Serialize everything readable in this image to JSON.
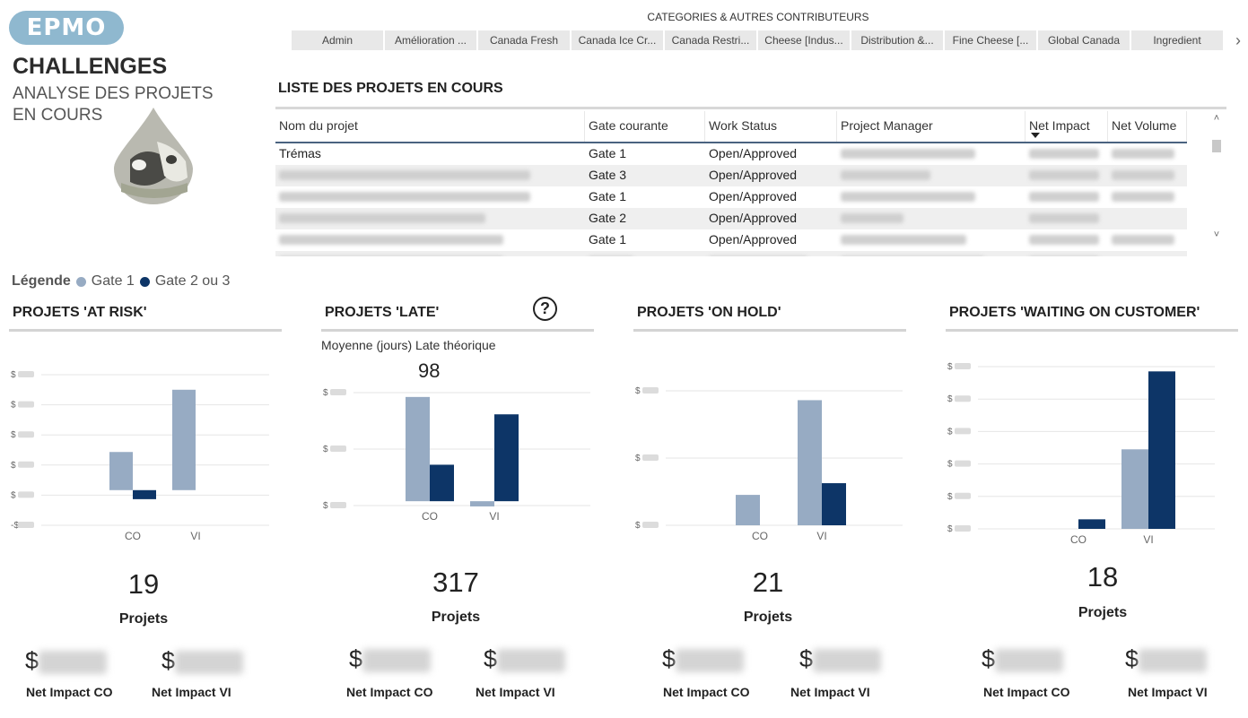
{
  "logo": {
    "text": "EPMO"
  },
  "header": {
    "title": "CHALLENGES",
    "subtitle": "ANALYSE DES PROJETS EN COURS"
  },
  "categories": {
    "title": "CATEGORIES & AUTRES CONTRIBUTEURS",
    "items": [
      "Admin",
      "Amélioration ...",
      "Canada Fresh",
      "Canada Ice Cr...",
      "Canada Restri...",
      "Cheese [Indus...",
      "Distribution &...",
      "Fine Cheese [...",
      "Global Canada",
      "Ingredient"
    ],
    "next_icon": "chevron-right-icon"
  },
  "table": {
    "title": "LISTE DES PROJETS EN COURS",
    "columns": [
      "Nom du projet",
      "Gate courante",
      "Work Status",
      "Project Manager",
      "Net Impact",
      "Net Volume"
    ],
    "rows": [
      {
        "name": "Trémas",
        "gate": "Gate 1",
        "status": "Open/Approved"
      },
      {
        "name": "",
        "gate": "Gate 3",
        "status": "Open/Approved"
      },
      {
        "name": "",
        "gate": "Gate 1",
        "status": "Open/Approved"
      },
      {
        "name": "",
        "gate": "Gate 2",
        "status": "Open/Approved"
      },
      {
        "name": "",
        "gate": "Gate 1",
        "status": "Open/Approved"
      }
    ]
  },
  "legend": {
    "label": "Légende",
    "gate1": "Gate 1",
    "gate23": "Gate 2 ou 3",
    "color_gate1": "#97abc3",
    "color_gate23": "#0d3567"
  },
  "panels": [
    {
      "title": "PROJETS 'AT RISK'",
      "count": "19",
      "count_label": "Projets",
      "kpi_co": "$",
      "kpi_co_label": "Net Impact CO",
      "kpi_vi": "$",
      "kpi_vi_label": "Net Impact VI"
    },
    {
      "title": "PROJETS 'LATE'",
      "help": "?",
      "subtitle": "Moyenne (jours) Late théorique",
      "late_value": "98",
      "count": "317",
      "count_label": "Projets",
      "kpi_co": "$",
      "kpi_co_label": "Net Impact CO",
      "kpi_vi": "$",
      "kpi_vi_label": "Net Impact VI"
    },
    {
      "title": "PROJETS 'ON HOLD'",
      "count": "21",
      "count_label": "Projets",
      "kpi_co": "$",
      "kpi_co_label": "Net Impact CO",
      "kpi_vi": "$",
      "kpi_vi_label": "Net Impact VI"
    },
    {
      "title": "PROJETS 'WAITING ON CUSTOMER'",
      "count": "18",
      "count_label": "Projets",
      "kpi_co": "$",
      "kpi_co_label": "Net Impact CO",
      "kpi_vi": "$",
      "kpi_vi_label": "Net Impact VI"
    }
  ],
  "chart_data": [
    {
      "type": "bar",
      "categories": [
        "CO",
        "VI"
      ],
      "series": [
        {
          "name": "Gate 1",
          "values": [
            0.38,
            1.0
          ]
        },
        {
          "name": "Gate 2 ou 3",
          "values": [
            -0.09,
            0
          ]
        }
      ],
      "ylim": [
        -0.35,
        1.15
      ],
      "yticks": [
        "$",
        "$",
        "$",
        "$",
        "$",
        "-$"
      ]
    },
    {
      "type": "bar",
      "categories": [
        "CO",
        "VI"
      ],
      "series": [
        {
          "name": "Gate 1",
          "values": [
            1.2,
            -0.06
          ]
        },
        {
          "name": "Gate 2 ou 3",
          "values": [
            0.42,
            1.0
          ]
        }
      ],
      "ylim": [
        -0.05,
        1.25
      ],
      "yticks": [
        "$",
        "$",
        "$"
      ]
    },
    {
      "type": "bar",
      "categories": [
        "CO",
        "VI"
      ],
      "series": [
        {
          "name": "Gate 1",
          "values": [
            0.26,
            1.07
          ]
        },
        {
          "name": "Gate 2 ou 3",
          "values": [
            0,
            0.36
          ]
        }
      ],
      "ylim": [
        0,
        1.15
      ],
      "yticks": [
        "$",
        "$",
        "$"
      ]
    },
    {
      "type": "bar",
      "categories": [
        "CO",
        "VI"
      ],
      "series": [
        {
          "name": "Gate 1",
          "values": [
            0,
            0.5
          ]
        },
        {
          "name": "Gate 2 ou 3",
          "values": [
            0.06,
            0.99
          ]
        }
      ],
      "ylim": [
        0,
        1.02
      ],
      "yticks": [
        "$",
        "$",
        "$",
        "$",
        "$",
        "$"
      ]
    }
  ]
}
